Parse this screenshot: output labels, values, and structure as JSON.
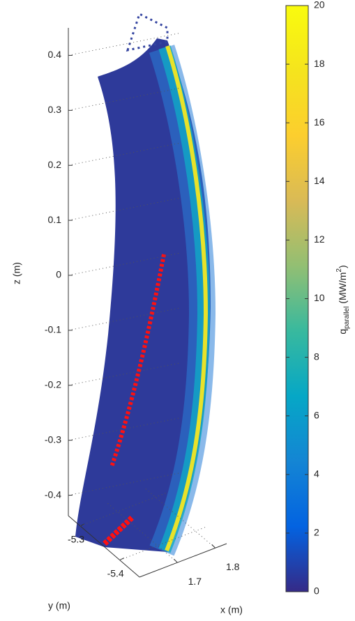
{
  "chart_data": {
    "type": "scatter3d",
    "zlabel": "z (m)",
    "ylabel": "y (m)",
    "xlabel": "x (m)",
    "zlim": [
      -0.45,
      0.45
    ],
    "zticks": [
      0.4,
      0.3,
      0.2,
      0.1,
      0,
      -0.1,
      -0.2,
      -0.3,
      -0.4
    ],
    "ylim": [
      -5.27,
      -5.45
    ],
    "yticks": [
      -5.3,
      -5.4
    ],
    "xlim": [
      1.6,
      1.83
    ],
    "xticks": [
      1.7,
      1.8
    ],
    "grid": true,
    "colorbar": {
      "clim": [
        0,
        20
      ],
      "ticks": [
        0,
        2,
        4,
        6,
        8,
        10,
        12,
        14,
        16,
        18,
        20
      ],
      "label": {
        "symbol": "q",
        "subscript": "parallel",
        "unit": "(MW/m",
        "superscript": "2",
        "close": ")"
      },
      "colors": [
        "#352a87",
        "#0363e1",
        "#1485d4",
        "#06a7c6",
        "#38b99e",
        "#92bf73",
        "#d9ba56",
        "#fcce2e",
        "#f5e41d",
        "#f9fb0e"
      ]
    }
  }
}
